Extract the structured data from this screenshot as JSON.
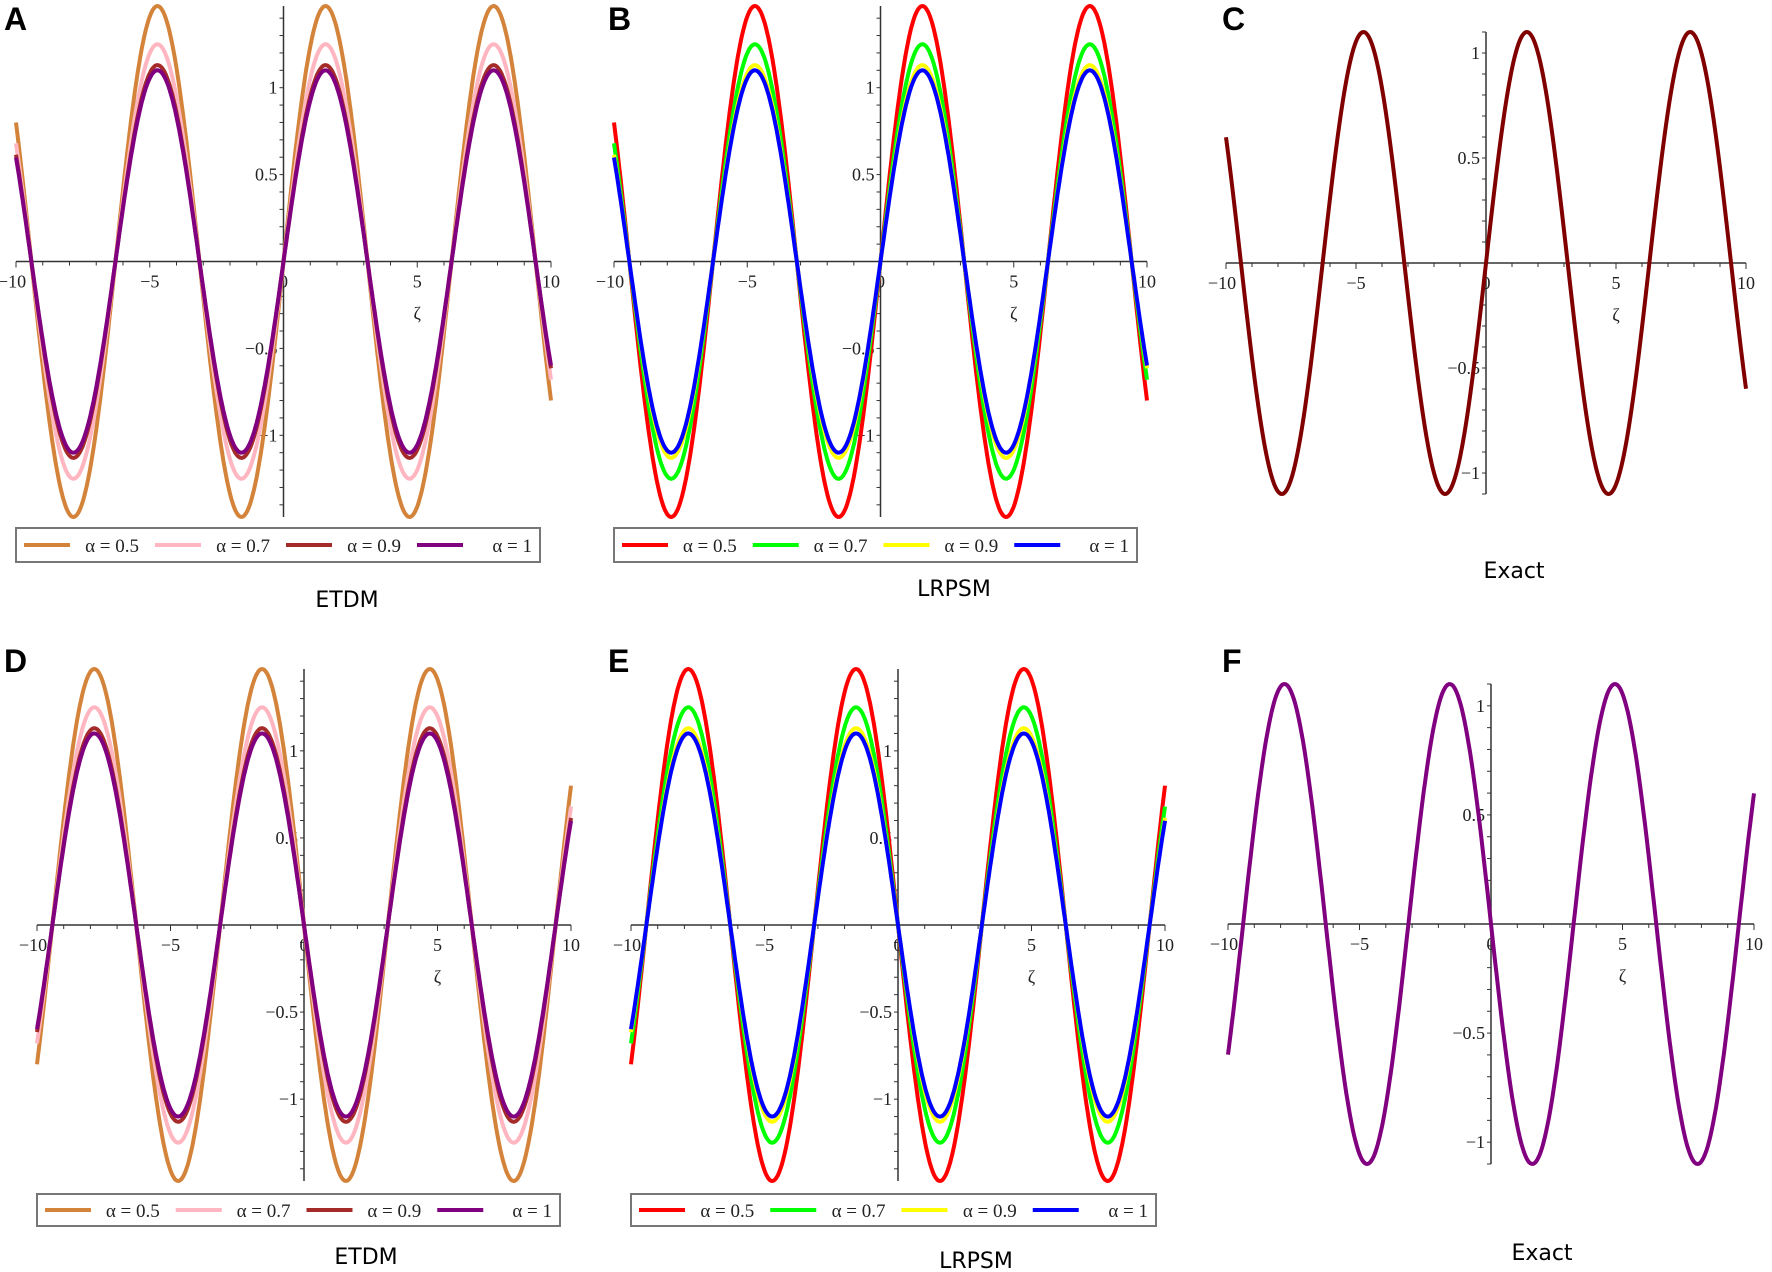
{
  "chart_data": [
    {
      "panel": "A",
      "type": "line",
      "title": "ETDM",
      "xlabel": "ζ",
      "xlim": [
        -10,
        10
      ],
      "ylim": [
        -1.47,
        1.47
      ],
      "xticks": [
        "−10",
        "−5",
        "0",
        "5",
        "10"
      ],
      "yticks": [
        "−1",
        "−0.5",
        "0.5",
        "1"
      ],
      "function": "A·sin(ζ)",
      "series": [
        {
          "name": "α = 0.5",
          "color": "#d4843a",
          "amplitude": 1.47
        },
        {
          "name": "α = 0.7",
          "color": "#ffb6c1",
          "amplitude": 1.25
        },
        {
          "name": "α = 0.9",
          "color": "#a52a2a",
          "amplitude": 1.13
        },
        {
          "name": "α = 1",
          "color": "#800080",
          "amplitude": 1.1
        }
      ]
    },
    {
      "panel": "B",
      "type": "line",
      "title": "LRPSM",
      "xlabel": "ζ",
      "xlim": [
        -10,
        10
      ],
      "ylim": [
        -1.47,
        1.47
      ],
      "xticks": [
        "−10",
        "−5",
        "0",
        "5",
        "10"
      ],
      "yticks": [
        "−1",
        "−0.5",
        "0.5",
        "1"
      ],
      "function": "A·sin(ζ)",
      "series": [
        {
          "name": "α = 0.5",
          "color": "#ff0000",
          "amplitude": 1.47
        },
        {
          "name": "α = 0.7",
          "color": "#00ff00",
          "amplitude": 1.25
        },
        {
          "name": "α = 0.9",
          "color": "#ffff00",
          "amplitude": 1.13
        },
        {
          "name": "α = 1",
          "color": "#0000ff",
          "amplitude": 1.1
        }
      ]
    },
    {
      "panel": "C",
      "type": "line",
      "title": "Exact",
      "xlabel": "ζ",
      "xlim": [
        -10,
        10
      ],
      "ylim": [
        -1.1,
        1.1
      ],
      "xticks": [
        "−10",
        "−5",
        "0",
        "5",
        "10"
      ],
      "yticks": [
        "−1",
        "−0.5",
        "0.5",
        "1"
      ],
      "function": "A·sin(ζ)",
      "series": [
        {
          "name": "Exact",
          "color": "#800000",
          "amplitude": 1.1
        }
      ]
    },
    {
      "panel": "D",
      "type": "line",
      "title": "ETDM",
      "xlabel": "ζ",
      "xlim": [
        -10,
        10
      ],
      "ylim": [
        -1.47,
        1.47
      ],
      "xticks": [
        "−10",
        "−5",
        "0",
        "5",
        "10"
      ],
      "yticks": [
        "−1",
        "−0.5",
        "0.5",
        "1"
      ],
      "function": "−A·sin(ζ)",
      "series": [
        {
          "name": "α = 0.5",
          "color": "#d4843a",
          "amplitude": -1.47
        },
        {
          "name": "α = 0.7",
          "color": "#ffb6c1",
          "amplitude": -1.25
        },
        {
          "name": "α = 0.9",
          "color": "#a52a2a",
          "amplitude": -1.13
        },
        {
          "name": "α = 1",
          "color": "#800080",
          "amplitude": -1.1
        }
      ]
    },
    {
      "panel": "E",
      "type": "line",
      "title": "LRPSM",
      "xlabel": "ζ",
      "xlim": [
        -10,
        10
      ],
      "ylim": [
        -1.47,
        1.47
      ],
      "xticks": [
        "−10",
        "−5",
        "0",
        "5",
        "10"
      ],
      "yticks": [
        "−1",
        "−0.5",
        "0.5",
        "1"
      ],
      "function": "−A·sin(ζ)",
      "series": [
        {
          "name": "α = 0.5",
          "color": "#ff0000",
          "amplitude": -1.47
        },
        {
          "name": "α = 0.7",
          "color": "#00ff00",
          "amplitude": -1.25
        },
        {
          "name": "α = 0.9",
          "color": "#ffff00",
          "amplitude": -1.13
        },
        {
          "name": "α = 1",
          "color": "#0000ff",
          "amplitude": -1.1
        }
      ]
    },
    {
      "panel": "F",
      "type": "line",
      "title": "Exact",
      "xlabel": "ζ",
      "xlim": [
        -10,
        10
      ],
      "ylim": [
        -1.1,
        1.1
      ],
      "xticks": [
        "−10",
        "−5",
        "0",
        "5",
        "10"
      ],
      "yticks": [
        "−1",
        "−0.5",
        "0.5",
        "1"
      ],
      "function": "−A·sin(ζ)",
      "series": [
        {
          "name": "Exact",
          "color": "#800080",
          "amplitude": -1.1
        }
      ]
    }
  ]
}
